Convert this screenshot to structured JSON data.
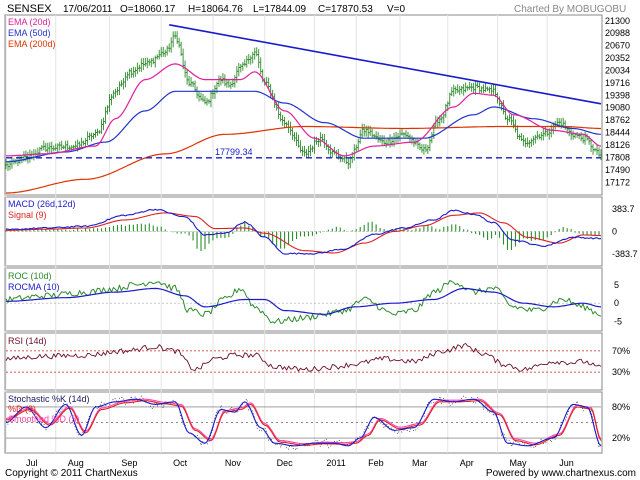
{
  "header": {
    "symbol": "SENSEX",
    "date": "17/06/2011",
    "open": "O=18060.17",
    "high": "H=18064.76",
    "low": "L=17844.09",
    "close": "C=17870.53",
    "volume": "V=0",
    "charted_by": "Charted By MOBUGOBU"
  },
  "footer": {
    "copyright": "Copyright © 2011 ChartNexus",
    "powered": "Powered by www.chartnexus.com"
  },
  "colors": {
    "price_bar": "#2e8b2e",
    "ema20": "#e0219a",
    "ema50": "#2233cc",
    "ema200": "#dd3300",
    "trendline": "#1a1acc",
    "support_line": "#1a1acc",
    "macd": "#1a1acc",
    "signal": "#dd2222",
    "histogram": "#2e8b2e",
    "roc": "#2e8b2e",
    "rocma": "#1a1acc",
    "rsi": "#6a0e2a",
    "k": "#1a1acc",
    "d": "#dd2222",
    "smoothed_d": "#ff44aa"
  },
  "chart_data": [
    {
      "type": "line",
      "panel": "price",
      "title": "SENSEX",
      "legend": [
        "EMA (20d)",
        "EMA (50d)",
        "EMA (200d)"
      ],
      "legend_placement": "top-left",
      "y_ticks": [
        "21300",
        "20988",
        "20670",
        "20352",
        "20034",
        "19716",
        "19398",
        "19080",
        "18762",
        "18444",
        "18126",
        "17808",
        "17490",
        "17172"
      ],
      "ylim": [
        16900,
        21400
      ],
      "x_ticks": [
        "Jul",
        "Aug",
        "Sep",
        "Oct",
        "Nov",
        "Dec",
        "2011",
        "Feb",
        "Mar",
        "Apr",
        "May",
        "Jun"
      ],
      "annotation": "17799.34",
      "support_level": 17799.34,
      "trendline": {
        "from": [
          82,
          21200
        ],
        "to": [
          299,
          19180
        ]
      },
      "close_keypoints": [
        [
          0,
          17600
        ],
        [
          10,
          17800
        ],
        [
          20,
          18050
        ],
        [
          35,
          18100
        ],
        [
          45,
          18400
        ],
        [
          55,
          19500
        ],
        [
          62,
          20000
        ],
        [
          70,
          20200
        ],
        [
          80,
          20500
        ],
        [
          85,
          20900
        ],
        [
          92,
          19700
        ],
        [
          100,
          19200
        ],
        [
          108,
          19800
        ],
        [
          112,
          19650
        ],
        [
          118,
          20100
        ],
        [
          125,
          20500
        ],
        [
          130,
          19700
        ],
        [
          140,
          18700
        ],
        [
          150,
          17900
        ],
        [
          158,
          18300
        ],
        [
          165,
          17900
        ],
        [
          172,
          17700
        ],
        [
          180,
          18500
        ],
        [
          190,
          18200
        ],
        [
          200,
          18400
        ],
        [
          210,
          18000
        ],
        [
          218,
          18800
        ],
        [
          225,
          19500
        ],
        [
          235,
          19600
        ],
        [
          245,
          19500
        ],
        [
          252,
          18800
        ],
        [
          260,
          18200
        ],
        [
          270,
          18400
        ],
        [
          278,
          18700
        ],
        [
          285,
          18400
        ],
        [
          290,
          18300
        ],
        [
          299,
          17870
        ]
      ],
      "ema20_keypoints": [
        [
          0,
          17850
        ],
        [
          20,
          17900
        ],
        [
          45,
          18100
        ],
        [
          55,
          18800
        ],
        [
          70,
          19800
        ],
        [
          85,
          20200
        ],
        [
          100,
          19800
        ],
        [
          118,
          19800
        ],
        [
          125,
          20000
        ],
        [
          140,
          19000
        ],
        [
          155,
          18300
        ],
        [
          170,
          17850
        ],
        [
          185,
          18100
        ],
        [
          205,
          18200
        ],
        [
          225,
          19100
        ],
        [
          235,
          19450
        ],
        [
          245,
          19400
        ],
        [
          255,
          18900
        ],
        [
          275,
          18500
        ],
        [
          290,
          18400
        ],
        [
          299,
          18100
        ]
      ],
      "ema50_keypoints": [
        [
          0,
          17700
        ],
        [
          30,
          17950
        ],
        [
          50,
          18200
        ],
        [
          70,
          19000
        ],
        [
          85,
          19500
        ],
        [
          100,
          19500
        ],
        [
          125,
          19500
        ],
        [
          140,
          19200
        ],
        [
          160,
          18700
        ],
        [
          180,
          18300
        ],
        [
          210,
          18300
        ],
        [
          235,
          18900
        ],
        [
          245,
          19100
        ],
        [
          265,
          18800
        ],
        [
          285,
          18550
        ],
        [
          299,
          18400
        ]
      ],
      "ema200_keypoints": [
        [
          0,
          16900
        ],
        [
          40,
          17250
        ],
        [
          80,
          17900
        ],
        [
          110,
          18400
        ],
        [
          150,
          18600
        ],
        [
          200,
          18550
        ],
        [
          250,
          18600
        ],
        [
          280,
          18600
        ],
        [
          299,
          18550
        ]
      ]
    },
    {
      "type": "bar",
      "panel": "macd",
      "legend": [
        "MACD (26d,12d)",
        "Signal (9)"
      ],
      "y_ticks": [
        "383.7",
        "0",
        "-383.7"
      ],
      "ylim": [
        -560,
        560
      ],
      "macd_keypoints": [
        [
          0,
          30
        ],
        [
          20,
          60
        ],
        [
          40,
          90
        ],
        [
          60,
          280
        ],
        [
          75,
          380
        ],
        [
          90,
          250
        ],
        [
          100,
          -60
        ],
        [
          110,
          -30
        ],
        [
          120,
          160
        ],
        [
          130,
          -100
        ],
        [
          140,
          -380
        ],
        [
          155,
          -380
        ],
        [
          170,
          -300
        ],
        [
          185,
          -50
        ],
        [
          200,
          60
        ],
        [
          215,
          200
        ],
        [
          225,
          360
        ],
        [
          235,
          300
        ],
        [
          245,
          150
        ],
        [
          255,
          -150
        ],
        [
          270,
          -250
        ],
        [
          285,
          -100
        ],
        [
          299,
          -120
        ]
      ],
      "signal_keypoints": [
        [
          0,
          20
        ],
        [
          20,
          40
        ],
        [
          40,
          60
        ],
        [
          60,
          200
        ],
        [
          80,
          320
        ],
        [
          95,
          260
        ],
        [
          105,
          50
        ],
        [
          120,
          60
        ],
        [
          130,
          -30
        ],
        [
          150,
          -330
        ],
        [
          165,
          -370
        ],
        [
          180,
          -200
        ],
        [
          195,
          0
        ],
        [
          210,
          100
        ],
        [
          225,
          280
        ],
        [
          238,
          320
        ],
        [
          250,
          150
        ],
        [
          262,
          -100
        ],
        [
          278,
          -200
        ],
        [
          290,
          -60
        ],
        [
          299,
          -70
        ]
      ]
    },
    {
      "type": "line",
      "panel": "roc",
      "legend": [
        "ROC (10d)",
        "ROCMA (10)"
      ],
      "y_ticks": [
        "5",
        "0",
        "-5"
      ],
      "ylim": [
        -7,
        9
      ],
      "roc_keypoints": [
        [
          0,
          1
        ],
        [
          20,
          2
        ],
        [
          40,
          3
        ],
        [
          55,
          4
        ],
        [
          65,
          5
        ],
        [
          75,
          6
        ],
        [
          85,
          4
        ],
        [
          92,
          -2
        ],
        [
          100,
          -3
        ],
        [
          110,
          1
        ],
        [
          118,
          4
        ],
        [
          125,
          -1
        ],
        [
          135,
          -5
        ],
        [
          150,
          -4
        ],
        [
          160,
          -3
        ],
        [
          170,
          -2
        ],
        [
          180,
          1
        ],
        [
          195,
          -3
        ],
        [
          205,
          -2
        ],
        [
          215,
          3
        ],
        [
          225,
          6
        ],
        [
          235,
          3
        ],
        [
          245,
          4
        ],
        [
          255,
          -1
        ],
        [
          265,
          -2
        ],
        [
          280,
          1
        ],
        [
          290,
          -1
        ],
        [
          299,
          -3
        ]
      ],
      "rocma_keypoints": [
        [
          0,
          0.5
        ],
        [
          30,
          1.5
        ],
        [
          55,
          3
        ],
        [
          75,
          4
        ],
        [
          90,
          2
        ],
        [
          100,
          -1
        ],
        [
          120,
          1
        ],
        [
          130,
          1
        ],
        [
          140,
          -2
        ],
        [
          160,
          -3
        ],
        [
          175,
          -1
        ],
        [
          195,
          0
        ],
        [
          215,
          1
        ],
        [
          230,
          4
        ],
        [
          245,
          3
        ],
        [
          260,
          0
        ],
        [
          275,
          -1
        ],
        [
          290,
          0
        ],
        [
          299,
          -1
        ]
      ]
    },
    {
      "type": "line",
      "panel": "rsi",
      "legend": [
        "RSI (14d)"
      ],
      "y_ticks": [
        "70%",
        "30%"
      ],
      "ylim": [
        0,
        100
      ],
      "rsi_keypoints": [
        [
          0,
          55
        ],
        [
          20,
          60
        ],
        [
          40,
          62
        ],
        [
          60,
          70
        ],
        [
          75,
          78
        ],
        [
          85,
          70
        ],
        [
          95,
          35
        ],
        [
          105,
          55
        ],
        [
          115,
          62
        ],
        [
          125,
          62
        ],
        [
          135,
          40
        ],
        [
          150,
          35
        ],
        [
          165,
          40
        ],
        [
          175,
          45
        ],
        [
          190,
          55
        ],
        [
          205,
          50
        ],
        [
          220,
          70
        ],
        [
          230,
          80
        ],
        [
          240,
          65
        ],
        [
          250,
          45
        ],
        [
          260,
          35
        ],
        [
          275,
          50
        ],
        [
          285,
          48
        ],
        [
          290,
          50
        ],
        [
          299,
          38
        ]
      ]
    },
    {
      "type": "line",
      "panel": "stochastic",
      "legend": [
        "Stochastic %K (14d)",
        "%D (3)",
        "Smoothed %D (3)"
      ],
      "y_ticks": [
        "80%",
        "20%"
      ],
      "ylim": [
        -5,
        105
      ],
      "k_keypoints": [
        [
          0,
          50
        ],
        [
          10,
          80
        ],
        [
          20,
          40
        ],
        [
          30,
          85
        ],
        [
          38,
          25
        ],
        [
          45,
          80
        ],
        [
          55,
          90
        ],
        [
          65,
          95
        ],
        [
          75,
          85
        ],
        [
          85,
          90
        ],
        [
          92,
          30
        ],
        [
          100,
          10
        ],
        [
          108,
          75
        ],
        [
          115,
          70
        ],
        [
          120,
          90
        ],
        [
          128,
          40
        ],
        [
          135,
          10
        ],
        [
          145,
          5
        ],
        [
          155,
          10
        ],
        [
          165,
          10
        ],
        [
          172,
          5
        ],
        [
          178,
          20
        ],
        [
          185,
          60
        ],
        [
          195,
          35
        ],
        [
          205,
          40
        ],
        [
          215,
          95
        ],
        [
          225,
          90
        ],
        [
          235,
          95
        ],
        [
          245,
          70
        ],
        [
          252,
          10
        ],
        [
          262,
          5
        ],
        [
          275,
          20
        ],
        [
          285,
          85
        ],
        [
          292,
          80
        ],
        [
          299,
          5
        ]
      ],
      "d_keypoints": [
        [
          0,
          55
        ],
        [
          12,
          75
        ],
        [
          22,
          45
        ],
        [
          32,
          78
        ],
        [
          40,
          30
        ],
        [
          48,
          75
        ],
        [
          60,
          88
        ],
        [
          70,
          92
        ],
        [
          80,
          86
        ],
        [
          88,
          82
        ],
        [
          95,
          35
        ],
        [
          103,
          15
        ],
        [
          110,
          70
        ],
        [
          118,
          75
        ],
        [
          123,
          85
        ],
        [
          130,
          45
        ],
        [
          138,
          12
        ],
        [
          150,
          6
        ],
        [
          160,
          9
        ],
        [
          170,
          8
        ],
        [
          176,
          10
        ],
        [
          182,
          25
        ],
        [
          188,
          55
        ],
        [
          198,
          38
        ],
        [
          208,
          45
        ],
        [
          218,
          90
        ],
        [
          228,
          90
        ],
        [
          238,
          92
        ],
        [
          248,
          65
        ],
        [
          256,
          15
        ],
        [
          266,
          7
        ],
        [
          278,
          25
        ],
        [
          287,
          80
        ],
        [
          294,
          76
        ],
        [
          299,
          15
        ]
      ]
    }
  ]
}
